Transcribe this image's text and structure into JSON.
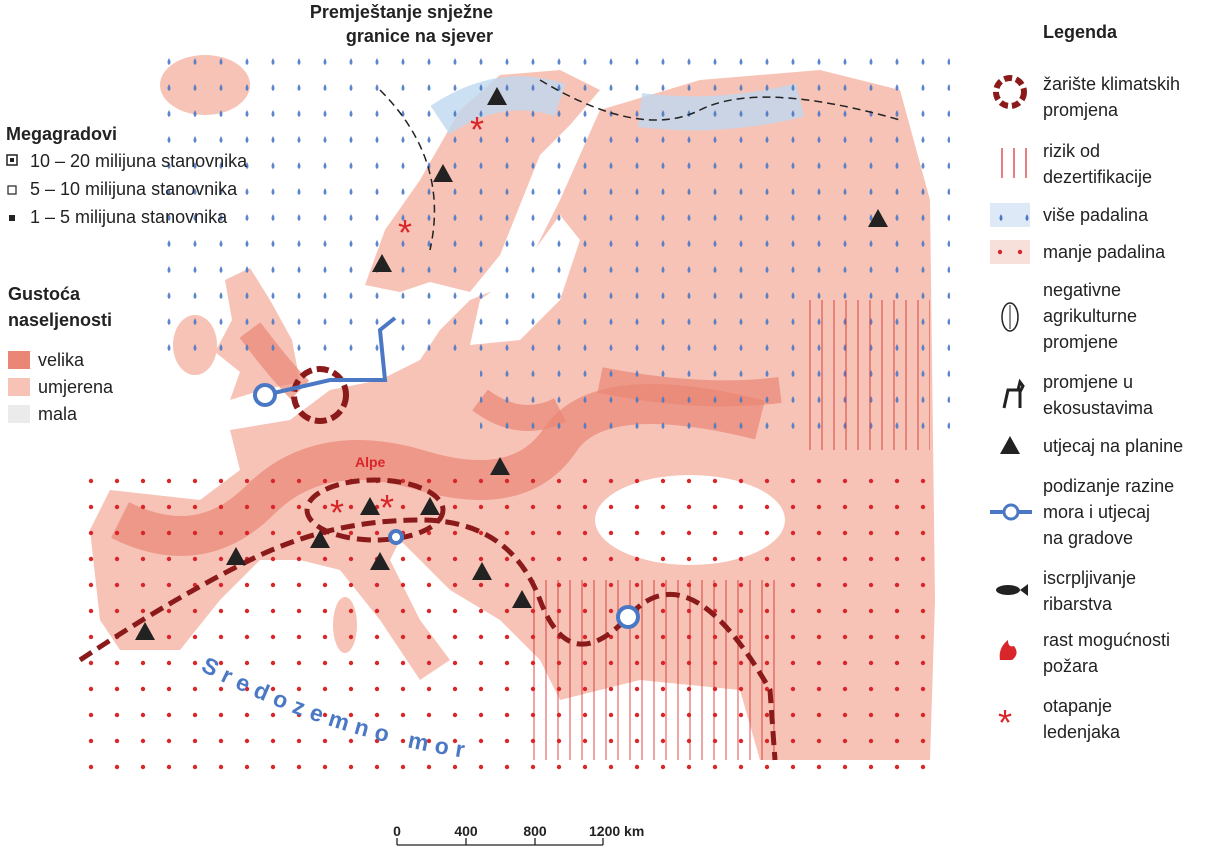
{
  "title": {
    "lines": [
      "Premještanje snježne",
      "granice na sjever"
    ]
  },
  "megacities": {
    "heading": "Megagradovi",
    "items": [
      "10 – 20 milijuna stanovnika",
      "5 – 10 milijuna stanovnika",
      "1 – 5 milijuna stanovnika"
    ]
  },
  "density": {
    "heading": [
      "Gustoća",
      "naseljenosti"
    ],
    "items": [
      "velika",
      "umjerena",
      "mala"
    ]
  },
  "legend": {
    "heading": "Legenda",
    "items": [
      {
        "lines": [
          "žarište klimatskih",
          "promjena"
        ]
      },
      {
        "lines": [
          "rizik od",
          "dezertifikacije"
        ]
      },
      {
        "lines": [
          "više padalina"
        ]
      },
      {
        "lines": [
          "manje padalina"
        ]
      },
      {
        "lines": [
          "negativne",
          "agrikulturne",
          "promjene"
        ]
      },
      {
        "lines": [
          "promjene u",
          "ekosustavima"
        ]
      },
      {
        "lines": [
          "utjecaj na planine"
        ]
      },
      {
        "lines": [
          "podizanje razine",
          "mora i utjecaj",
          "na gradove"
        ]
      },
      {
        "lines": [
          "iscrpljivanje",
          "ribarstva"
        ]
      },
      {
        "lines": [
          "rast mogućnosti",
          "požara"
        ]
      },
      {
        "lines": [
          "otapanje",
          "ledenjaka"
        ]
      }
    ]
  },
  "map_labels": {
    "alps": "Alpe",
    "sea": "Sredozemno more"
  },
  "scale": {
    "labels": [
      "0",
      "400",
      "800",
      "1200 km"
    ]
  }
}
